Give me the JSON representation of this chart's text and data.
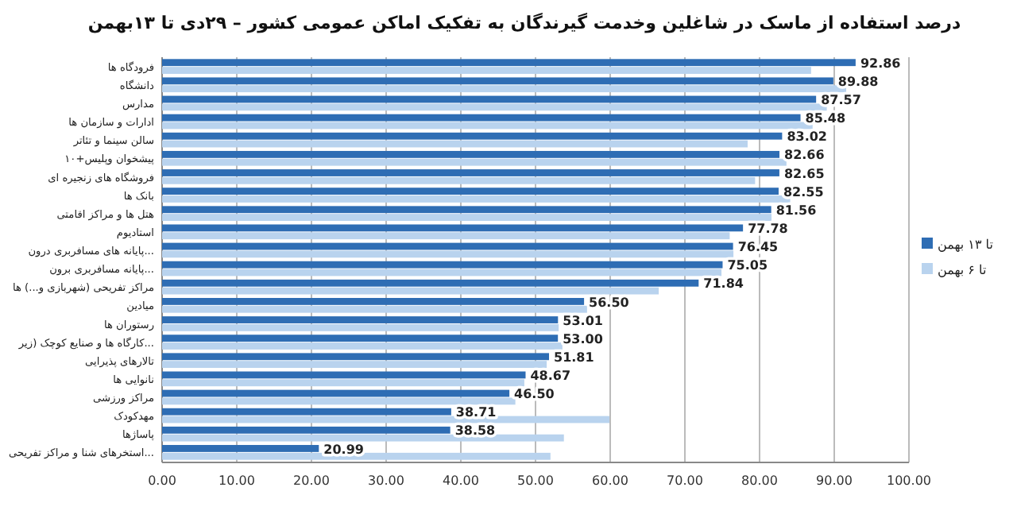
{
  "chart_data": {
    "type": "bar",
    "orientation": "horizontal",
    "title": "درصد استفاده از ماسک در شاغلین وخدمت گیرندگان به تفکیک اماکن عمومی کشور  – ۲۹دی تا ۱۳بهمن",
    "categories": [
      "فرودگاه ها",
      "دانشگاه",
      "مدارس",
      "ادارات و سازمان ها",
      "سالن سینما و تئاتر",
      "پیشخوان وپلیس+۱۰",
      "فروشگاه های زنجیره ای",
      "بانک ها",
      "هتل ها و مراکز اقامتی",
      "استادیوم",
      "پایانه های مسافربری درون...",
      "پایانه مسافربری برون...",
      "مراکز تفریحی (شهربازی و...) ها",
      "میادین",
      "رستوران ها",
      "کارگاه ها و صنایع کوچک (زیر...",
      "تالارهای پذیرایی",
      "نانوایی ها",
      "مراکز ورزشی",
      "مهدکودک",
      "پاساژها",
      "استخرهای شنا و مراکز تفریحی..."
    ],
    "series": [
      {
        "name": "تا ۱۳ بهمن",
        "color": "#2e6db4",
        "values": [
          92.86,
          89.88,
          87.57,
          85.48,
          83.02,
          82.66,
          82.65,
          82.55,
          81.56,
          77.78,
          76.45,
          75.05,
          71.84,
          56.5,
          53.01,
          53.0,
          51.81,
          48.67,
          46.5,
          38.71,
          38.58,
          20.99
        ],
        "value_labels": [
          "92.86",
          "89.88",
          "87.57",
          "85.48",
          "83.02",
          "82.66",
          "82.65",
          "82.55",
          "81.56",
          "77.78",
          "76.45",
          "75.05",
          "71.84",
          "56.50",
          "53.01",
          "53.00",
          "51.81",
          "48.67",
          "46.50",
          "38.71",
          "38.58",
          "20.99"
        ]
      },
      {
        "name": "تا ۶ بهمن",
        "color": "#b9d3ee",
        "values": [
          86.9,
          91.6,
          89.0,
          87.1,
          78.4,
          83.6,
          79.4,
          84.1,
          81.6,
          76.0,
          76.5,
          74.9,
          66.5,
          56.9,
          53.1,
          53.6,
          51.5,
          48.5,
          47.3,
          59.9,
          53.8,
          52.0
        ]
      }
    ],
    "xlim": [
      0,
      100
    ],
    "xticks": [
      {
        "value": 0,
        "label": "0.00"
      },
      {
        "value": 10,
        "label": "10.00"
      },
      {
        "value": 20,
        "label": "20.00"
      },
      {
        "value": 30,
        "label": "30.00"
      },
      {
        "value": 40,
        "label": "40.00"
      },
      {
        "value": 50,
        "label": "50.00"
      },
      {
        "value": 60,
        "label": "60.00"
      },
      {
        "value": 70,
        "label": "70.00"
      },
      {
        "value": 80,
        "label": "80.00"
      },
      {
        "value": 90,
        "label": "90.00"
      },
      {
        "value": 100,
        "label": "100.00"
      }
    ],
    "grid": "x",
    "legend": "right"
  }
}
